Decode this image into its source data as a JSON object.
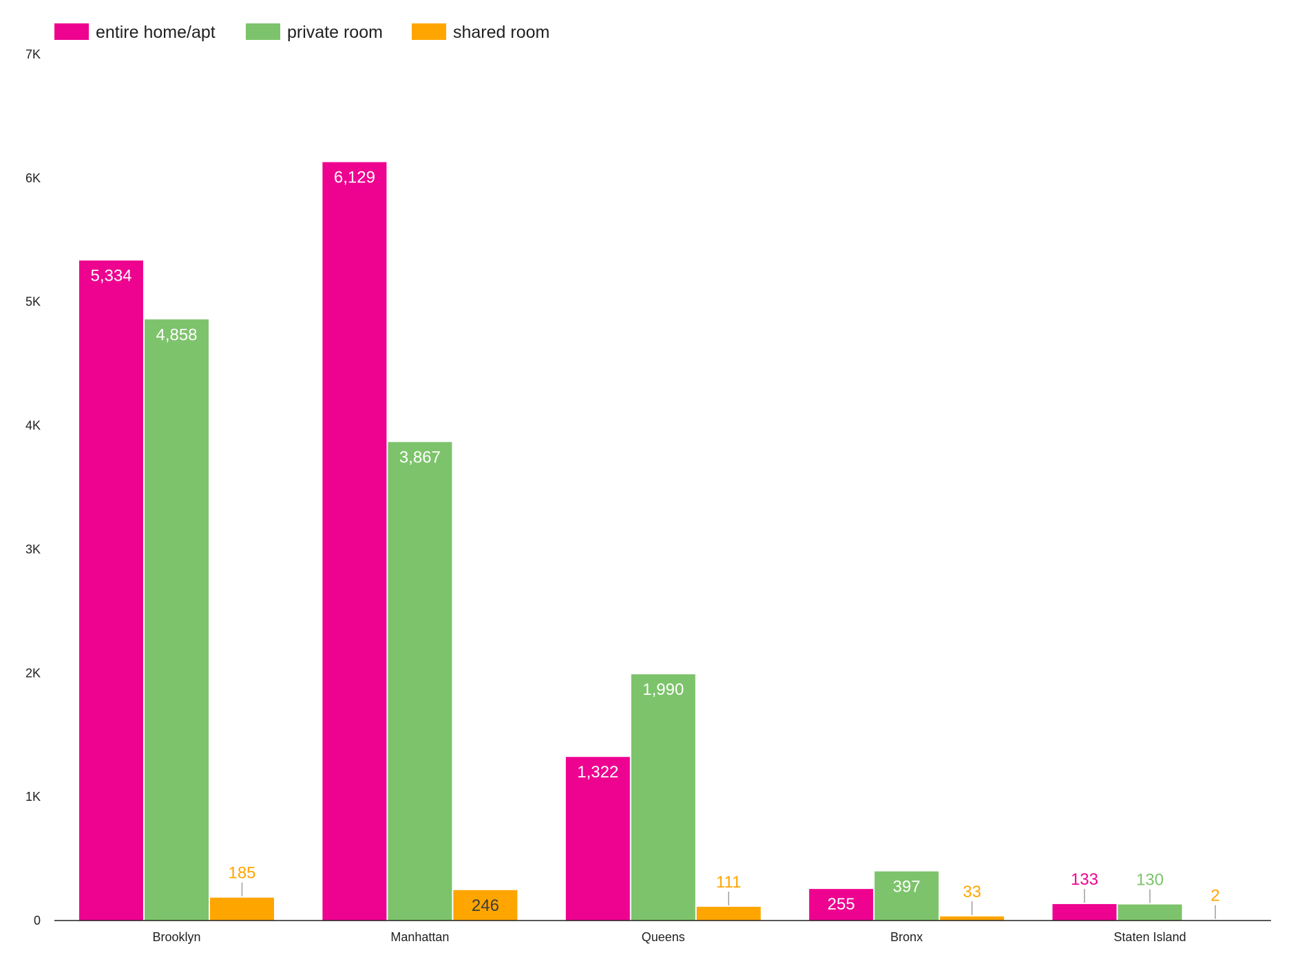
{
  "chart_data": {
    "type": "bar",
    "categories": [
      "Brooklyn",
      "Manhattan",
      "Queens",
      "Bronx",
      "Staten Island"
    ],
    "series": [
      {
        "name": "entire home/apt",
        "color": "#ee0290",
        "values": [
          5334,
          6129,
          1322,
          255,
          133
        ],
        "labels": [
          "5,334",
          "6,129",
          "1,322",
          "255",
          "133"
        ]
      },
      {
        "name": "private room",
        "color": "#7dc36b",
        "values": [
          4858,
          3867,
          1990,
          397,
          130
        ],
        "labels": [
          "4,858",
          "3,867",
          "1,990",
          "397",
          "130"
        ]
      },
      {
        "name": "shared room",
        "color": "#ffa500",
        "values": [
          185,
          246,
          111,
          33,
          2
        ],
        "labels": [
          "185",
          "246",
          "111",
          "33",
          "2"
        ]
      }
    ],
    "y_ticks": [
      0,
      1000,
      2000,
      3000,
      4000,
      5000,
      6000,
      7000
    ],
    "y_tick_labels": [
      "0",
      "1K",
      "2K",
      "3K",
      "4K",
      "5K",
      "6K",
      "7K"
    ],
    "ylim": [
      0,
      7000
    ],
    "grid": false,
    "legend_position": "top-left"
  }
}
